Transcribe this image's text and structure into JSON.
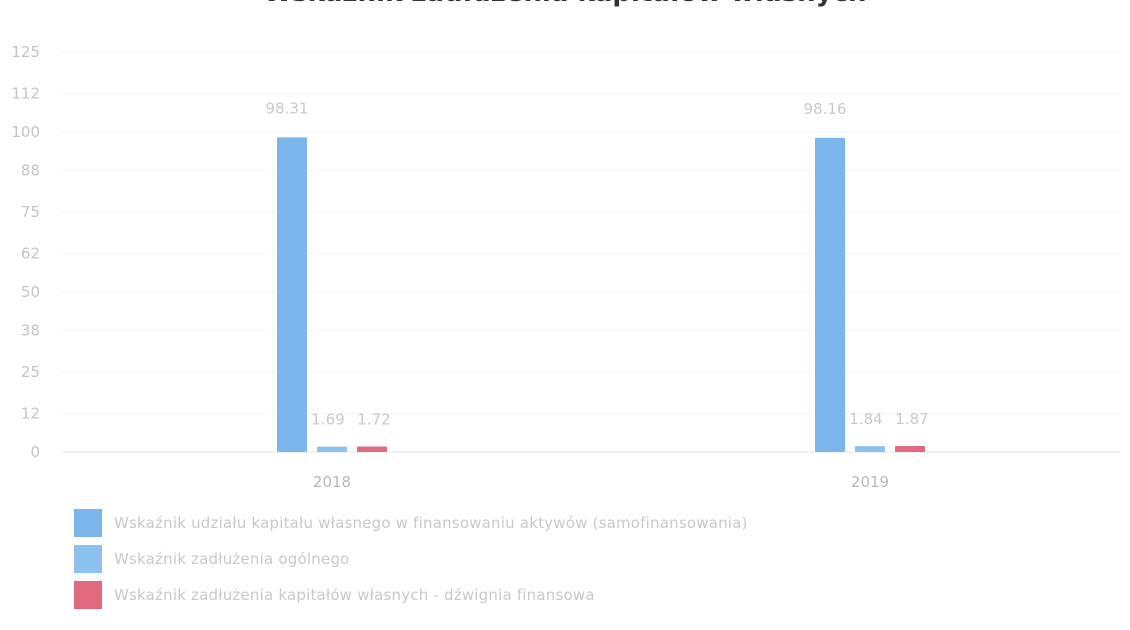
{
  "title": "Wskaźnik zadłużenia kapitałów własnych",
  "colors": {
    "series1": "#7ab6ec",
    "series2": "#8cc2ef",
    "series3": "#e06b80"
  },
  "chart_data": {
    "type": "bar",
    "title": "Wskaźnik zadłużenia kapitałów własnych",
    "categories": [
      "2018",
      "2019"
    ],
    "series": [
      {
        "name": "Wskaźnik udziału kapitału własnego w finansowaniu aktywów (samofinansowania)",
        "values": [
          98.31,
          98.16
        ],
        "labels": [
          "98.31",
          "98.16"
        ]
      },
      {
        "name": "Wskaźnik zadłużenia ogólnego",
        "values": [
          1.69,
          1.84
        ],
        "labels": [
          "1.69",
          "1.84"
        ]
      },
      {
        "name": "Wskaźnik zadłużenia kapitałów własnych - dźwignia finansowa",
        "values": [
          1.72,
          1.87
        ],
        "labels": [
          "1.72",
          "1.87"
        ]
      }
    ],
    "yticks": [
      "0",
      "12",
      "25",
      "38",
      "50",
      "62",
      "75",
      "88",
      "100",
      "112",
      "125"
    ],
    "ylim": [
      0,
      125
    ],
    "legend_position": "bottom-left",
    "grid": true
  }
}
